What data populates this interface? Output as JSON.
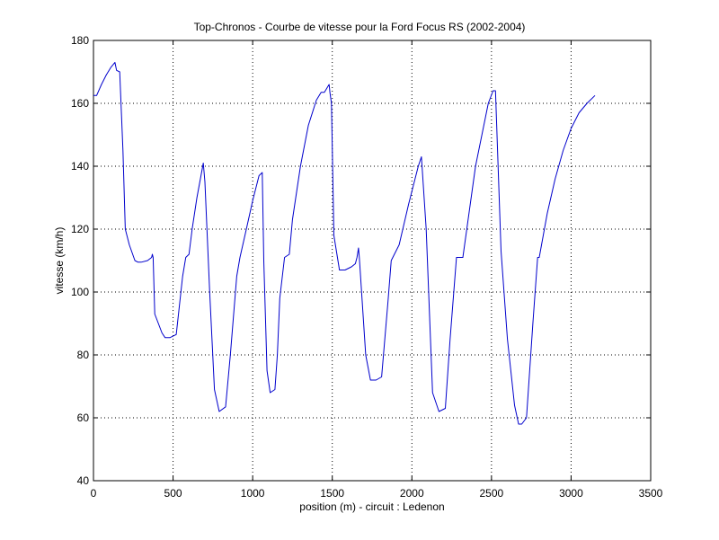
{
  "chart_data": {
    "type": "line",
    "title": "Top-Chronos - Courbe de vitesse pour la Ford Focus RS (2002-2004)",
    "xlabel": "position (m) - circuit : Ledenon",
    "ylabel": "vitesse (km/h)",
    "xlim": [
      0,
      3500
    ],
    "ylim": [
      40,
      180
    ],
    "xticks": [
      0,
      500,
      1000,
      1500,
      2000,
      2500,
      3000,
      3500
    ],
    "yticks": [
      40,
      60,
      80,
      100,
      120,
      140,
      160,
      180
    ],
    "grid": true,
    "line_color": "#0000cc",
    "series": [
      {
        "x": [
          0,
          20,
          50,
          80,
          110,
          135,
          145,
          165,
          185,
          200,
          225,
          260,
          280,
          300,
          340,
          365,
          370,
          375,
          385,
          430,
          450,
          480,
          520,
          560,
          580,
          600,
          620,
          650,
          690,
          700,
          730,
          760,
          790,
          830,
          860,
          900,
          920,
          960,
          1000,
          1040,
          1060,
          1070,
          1090,
          1110,
          1140,
          1155,
          1170,
          1200,
          1230,
          1250,
          1300,
          1350,
          1400,
          1430,
          1450,
          1480,
          1485,
          1495,
          1510,
          1545,
          1580,
          1620,
          1645,
          1655,
          1665,
          1670,
          1710,
          1740,
          1775,
          1810,
          1850,
          1870,
          1920,
          1980,
          2040,
          2060,
          2090,
          2130,
          2170,
          2210,
          2240,
          2280,
          2320,
          2400,
          2480,
          2510,
          2525,
          2560,
          2600,
          2645,
          2670,
          2690,
          2720,
          2760,
          2790,
          2800,
          2850,
          2900,
          2950,
          3000,
          3050,
          3100,
          3150
        ],
        "values": [
          162.5,
          162.5,
          166,
          169,
          171.5,
          173,
          170.5,
          170,
          145,
          120,
          115,
          110,
          109.5,
          109.5,
          110,
          111,
          112,
          111,
          93,
          87,
          85.5,
          85.5,
          86.5,
          105,
          111,
          112,
          120,
          130,
          141,
          135,
          100,
          69,
          62,
          63.5,
          80,
          105,
          111,
          120,
          129,
          137,
          138,
          110,
          75,
          68,
          69,
          80,
          98,
          111,
          112,
          123,
          140,
          153,
          161,
          163.5,
          163.5,
          166,
          163.5,
          160,
          118,
          107,
          107,
          108,
          109,
          111,
          114,
          111,
          80,
          72,
          72,
          73,
          97,
          110,
          115,
          128,
          140,
          143,
          120,
          68,
          62,
          63,
          85,
          111,
          111,
          140,
          160,
          164,
          164,
          113,
          85,
          64,
          58,
          58,
          60,
          90,
          111,
          111,
          125,
          136,
          145,
          152,
          157,
          160,
          162.5
        ]
      }
    ]
  }
}
